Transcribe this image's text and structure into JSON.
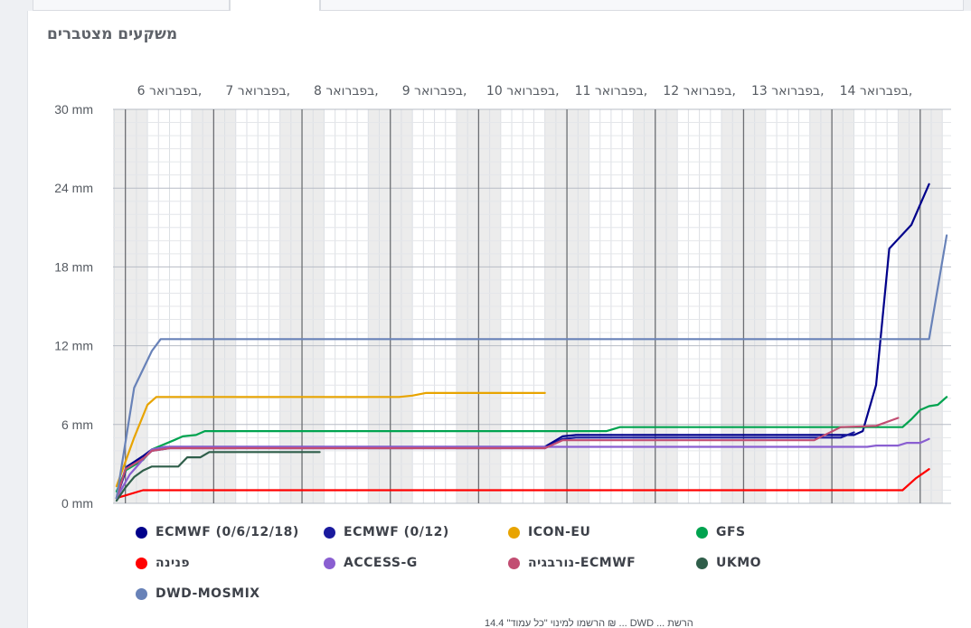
{
  "page": {
    "title": "משקעים מצטברים",
    "footnote": "הרשמו למינוי \"כל עמוד\" 14.4 ₪ ... DWD ... הרשת"
  },
  "chart_data": {
    "type": "line",
    "title": "משקעים מצטברים",
    "xlabel": "",
    "ylabel": "",
    "x_unit": "days from start of 6 בפברואר",
    "xlim": [
      -0.14,
      9.35
    ],
    "ylim": [
      0,
      30
    ],
    "y_ticks": [
      0,
      6,
      12,
      18,
      24,
      30
    ],
    "y_tick_labels": [
      "0 mm",
      "6 mm",
      "12 mm",
      "18 mm",
      "24 mm",
      "30 mm"
    ],
    "day_labels": [
      "6 בפברואר,",
      "7 בפברואר,",
      "8 בפברואר,",
      "9 בפברואר,",
      "10 בפברואר,",
      "11 בפברואר,",
      "12 בפברואר,",
      "13 בפברואר,",
      "14 בפברואר,"
    ],
    "grid": true,
    "legend_position": "bottom",
    "night_shading": true,
    "series": [
      {
        "name": "ECMWF (0/6/12/18)",
        "color": "#00008b",
        "x": [
          -0.1,
          0.02,
          0.2,
          0.3,
          0.5,
          4.75,
          4.95,
          5.1,
          8.25,
          8.35,
          8.5,
          8.65,
          8.9,
          9.1
        ],
        "y": [
          0.4,
          2.8,
          3.6,
          4.1,
          4.3,
          4.3,
          5.1,
          5.2,
          5.2,
          5.5,
          9.0,
          19.4,
          21.2,
          24.3
        ]
      },
      {
        "name": "ECMWF (0/12)",
        "color": "#1a1a9e",
        "x": [
          -0.1,
          0.0,
          0.2,
          0.3,
          0.5,
          4.75,
          4.95,
          5.1,
          8.1,
          8.25
        ],
        "y": [
          0.4,
          2.6,
          3.4,
          4.0,
          4.2,
          4.2,
          4.9,
          5.0,
          5.0,
          5.4
        ]
      },
      {
        "name": "ICON-EU",
        "color": "#e8a400",
        "x": [
          -0.1,
          0.1,
          0.25,
          0.35,
          3.1,
          3.25,
          3.4,
          4.75
        ],
        "y": [
          1.3,
          5.0,
          7.5,
          8.1,
          8.1,
          8.2,
          8.4,
          8.4
        ]
      },
      {
        "name": "GFS",
        "color": "#00a34f",
        "x": [
          -0.1,
          0.0,
          0.2,
          0.3,
          0.55,
          0.65,
          0.8,
          0.9,
          5.45,
          5.6,
          8.8,
          8.9,
          9.0,
          9.1,
          9.2,
          9.3
        ],
        "y": [
          0.9,
          2.5,
          3.3,
          4.1,
          4.8,
          5.1,
          5.2,
          5.5,
          5.5,
          5.8,
          5.8,
          6.4,
          7.1,
          7.4,
          7.5,
          8.1
        ]
      },
      {
        "name": "פנינה",
        "color": "#ff0000",
        "x": [
          -0.1,
          0.0,
          0.2,
          8.8,
          8.95,
          9.1
        ],
        "y": [
          0.4,
          0.6,
          1.0,
          1.0,
          1.9,
          2.6
        ]
      },
      {
        "name": "ACCESS-G",
        "color": "#8a5fd1",
        "x": [
          -0.1,
          0.05,
          0.3,
          0.45,
          5.1,
          8.4,
          8.5,
          8.75,
          8.85,
          9.0,
          9.1
        ],
        "y": [
          0.4,
          2.2,
          4.1,
          4.3,
          4.3,
          4.3,
          4.4,
          4.4,
          4.6,
          4.6,
          4.9
        ]
      },
      {
        "name": "נורבגיה-ECMWF",
        "color": "#c24d72",
        "x": [
          -0.1,
          0.0,
          0.2,
          0.3,
          0.5,
          4.75,
          4.95,
          5.1,
          7.8,
          8.1,
          8.5,
          8.75
        ],
        "y": [
          0.4,
          2.6,
          3.4,
          4.0,
          4.2,
          4.2,
          4.8,
          4.8,
          4.8,
          5.8,
          5.9,
          6.5
        ]
      },
      {
        "name": "UKMO",
        "color": "#2f5e4a",
        "x": [
          -0.1,
          0.0,
          0.1,
          0.2,
          0.3,
          0.6,
          0.7,
          0.85,
          0.95,
          2.2
        ],
        "y": [
          0.2,
          1.2,
          2.0,
          2.5,
          2.8,
          2.8,
          3.5,
          3.5,
          3.9,
          3.9
        ]
      },
      {
        "name": "DWD-MOSMIX",
        "color": "#6882b8",
        "x": [
          -0.1,
          0.1,
          0.3,
          0.4,
          9.1,
          9.3
        ],
        "y": [
          0.4,
          8.8,
          11.6,
          12.5,
          12.5,
          20.4
        ]
      }
    ]
  }
}
